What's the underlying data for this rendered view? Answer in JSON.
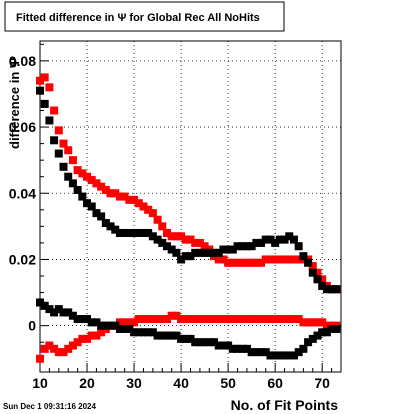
{
  "chart_data": {
    "type": "scatter",
    "title": "Fitted difference in  Ψ  for Global Rec All NoHits",
    "xlabel": "No. of Fit Points",
    "ylabel": "difference in Ψ",
    "xlim": [
      10,
      74
    ],
    "ylim": [
      -0.014,
      0.086
    ],
    "x_ticks": [
      "10",
      "20",
      "30",
      "40",
      "50",
      "60",
      "70"
    ],
    "y_ticks": [
      "0",
      "0.02",
      "0.04",
      "0.06",
      "0.08"
    ],
    "grid": true,
    "series": [
      {
        "color": "#ff0000",
        "x": [
          10,
          11,
          12,
          13,
          14,
          15,
          16,
          17,
          18,
          19,
          20,
          21,
          22,
          23,
          24,
          25,
          26,
          27,
          28,
          29,
          30,
          31,
          32,
          33,
          34,
          35,
          36,
          37,
          38,
          39,
          40,
          41,
          42,
          43,
          44,
          45,
          46,
          47,
          48,
          49,
          50,
          51,
          52,
          53,
          54,
          55,
          56,
          57,
          58,
          59,
          60,
          61,
          62,
          63,
          64,
          65,
          66,
          67,
          68,
          69,
          70,
          71,
          72,
          73
        ],
        "y": [
          0.074,
          0.075,
          0.072,
          0.065,
          0.059,
          0.055,
          0.053,
          0.05,
          0.047,
          0.046,
          0.045,
          0.044,
          0.043,
          0.042,
          0.041,
          0.04,
          0.04,
          0.039,
          0.039,
          0.038,
          0.038,
          0.037,
          0.036,
          0.035,
          0.034,
          0.032,
          0.03,
          0.028,
          0.027,
          0.027,
          0.027,
          0.026,
          0.026,
          0.025,
          0.025,
          0.024,
          0.023,
          0.021,
          0.02,
          0.02,
          0.019,
          0.019,
          0.019,
          0.019,
          0.019,
          0.019,
          0.019,
          0.019,
          0.02,
          0.02,
          0.02,
          0.02,
          0.02,
          0.02,
          0.02,
          0.02,
          0.02,
          0.02,
          0.018,
          0.016,
          0.014,
          0.012,
          0.011,
          0.011
        ]
      },
      {
        "color": "#000000",
        "x": [
          10,
          11,
          12,
          13,
          14,
          15,
          16,
          17,
          18,
          19,
          20,
          21,
          22,
          23,
          24,
          25,
          26,
          27,
          28,
          29,
          30,
          31,
          32,
          33,
          34,
          35,
          36,
          37,
          38,
          39,
          40,
          41,
          42,
          43,
          44,
          45,
          46,
          47,
          48,
          49,
          50,
          51,
          52,
          53,
          54,
          55,
          56,
          57,
          58,
          59,
          60,
          61,
          62,
          63,
          64,
          65,
          66,
          67,
          68,
          69,
          70,
          71,
          72,
          73
        ],
        "y": [
          0.071,
          0.067,
          0.062,
          0.056,
          0.052,
          0.048,
          0.045,
          0.043,
          0.041,
          0.039,
          0.037,
          0.036,
          0.034,
          0.033,
          0.031,
          0.03,
          0.029,
          0.028,
          0.028,
          0.028,
          0.028,
          0.028,
          0.028,
          0.028,
          0.027,
          0.026,
          0.025,
          0.024,
          0.023,
          0.022,
          0.02,
          0.021,
          0.021,
          0.022,
          0.022,
          0.022,
          0.022,
          0.022,
          0.022,
          0.023,
          0.023,
          0.023,
          0.024,
          0.024,
          0.024,
          0.024,
          0.025,
          0.025,
          0.026,
          0.026,
          0.025,
          0.026,
          0.026,
          0.027,
          0.026,
          0.024,
          0.021,
          0.019,
          0.016,
          0.014,
          0.012,
          0.011,
          0.011,
          0.011
        ]
      },
      {
        "color": "#ff0000",
        "x": [
          10,
          11,
          12,
          13,
          14,
          15,
          16,
          17,
          18,
          19,
          20,
          21,
          22,
          23,
          24,
          25,
          26,
          27,
          28,
          29,
          30,
          31,
          32,
          33,
          34,
          35,
          36,
          37,
          38,
          39,
          40,
          41,
          42,
          43,
          44,
          45,
          46,
          47,
          48,
          49,
          50,
          51,
          52,
          53,
          54,
          55,
          56,
          57,
          58,
          59,
          60,
          61,
          62,
          63,
          64,
          65,
          66,
          67,
          68,
          69,
          70,
          71,
          72,
          73
        ],
        "y": [
          -0.01,
          -0.007,
          -0.006,
          -0.007,
          -0.008,
          -0.008,
          -0.007,
          -0.006,
          -0.005,
          -0.004,
          -0.004,
          -0.003,
          -0.003,
          -0.002,
          -0.001,
          0.0,
          0.0,
          0.001,
          0.001,
          0.001,
          0.001,
          0.002,
          0.002,
          0.002,
          0.002,
          0.002,
          0.002,
          0.002,
          0.003,
          0.003,
          0.002,
          0.002,
          0.002,
          0.002,
          0.002,
          0.002,
          0.002,
          0.002,
          0.002,
          0.002,
          0.002,
          0.002,
          0.002,
          0.002,
          0.002,
          0.002,
          0.002,
          0.002,
          0.002,
          0.002,
          0.002,
          0.002,
          0.002,
          0.002,
          0.002,
          0.002,
          0.001,
          0.001,
          0.001,
          0.001,
          0.001,
          0.0,
          0.0,
          0.0
        ]
      },
      {
        "color": "#000000",
        "x": [
          10,
          11,
          12,
          13,
          14,
          15,
          16,
          17,
          18,
          19,
          20,
          21,
          22,
          23,
          24,
          25,
          26,
          27,
          28,
          29,
          30,
          31,
          32,
          33,
          34,
          35,
          36,
          37,
          38,
          39,
          40,
          41,
          42,
          43,
          44,
          45,
          46,
          47,
          48,
          49,
          50,
          51,
          52,
          53,
          54,
          55,
          56,
          57,
          58,
          59,
          60,
          61,
          62,
          63,
          64,
          65,
          66,
          67,
          68,
          69,
          70,
          71,
          72,
          73
        ],
        "y": [
          0.007,
          0.006,
          0.005,
          0.004,
          0.005,
          0.004,
          0.004,
          0.003,
          0.002,
          0.002,
          0.002,
          0.001,
          0.001,
          0.0,
          0.0,
          0.0,
          0.0,
          -0.001,
          -0.001,
          -0.001,
          -0.002,
          -0.002,
          -0.002,
          -0.002,
          -0.002,
          -0.003,
          -0.003,
          -0.003,
          -0.003,
          -0.003,
          -0.004,
          -0.004,
          -0.004,
          -0.005,
          -0.005,
          -0.005,
          -0.005,
          -0.005,
          -0.006,
          -0.006,
          -0.006,
          -0.007,
          -0.007,
          -0.007,
          -0.007,
          -0.008,
          -0.008,
          -0.008,
          -0.008,
          -0.009,
          -0.009,
          -0.009,
          -0.009,
          -0.009,
          -0.009,
          -0.008,
          -0.007,
          -0.005,
          -0.004,
          -0.003,
          -0.002,
          -0.002,
          -0.001,
          -0.001
        ]
      }
    ]
  },
  "footer": {
    "timestamp": "Sun Dec  1 09:31:16 2024"
  }
}
